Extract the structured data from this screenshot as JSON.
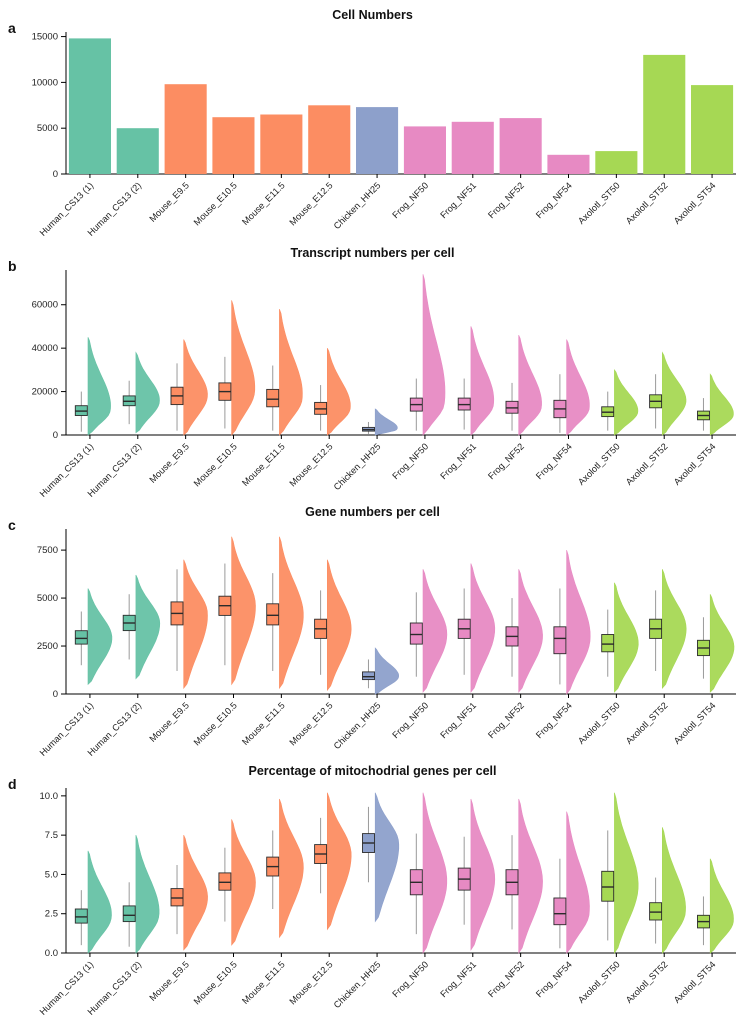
{
  "figure_background": "#ffffff",
  "categories": [
    "Human_CS13 (1)",
    "Human_CS13 (2)",
    "Mouse_E9.5",
    "Mouse_E10.5",
    "Mouse_E11.5",
    "Mouse_E12.5",
    "Chicken_HH25",
    "Frog_NF50",
    "Frog_NF51",
    "Frog_NF52",
    "Frog_NF54",
    "Axolotl_ST50",
    "Axolotl_ST52",
    "Axolotl_ST54"
  ],
  "group_colors": [
    "#66C2A5",
    "#66C2A5",
    "#FC8D62",
    "#FC8D62",
    "#FC8D62",
    "#FC8D62",
    "#8DA0CB",
    "#E78AC3",
    "#E78AC3",
    "#E78AC3",
    "#E78AC3",
    "#A6D854",
    "#A6D854",
    "#A6D854"
  ],
  "species_palette": {
    "Human": "#66C2A5",
    "Mouse": "#FC8D62",
    "Chicken": "#8DA0CB",
    "Frog": "#E78AC3",
    "Axolotl": "#A6D854"
  },
  "stats_order": "whisker_low, q1, median, q3, whisker_high, violin_bottom, violin_top",
  "chart_data": [
    {
      "type": "bar",
      "panel_label": "a",
      "title": "Cell Numbers",
      "categories": [
        "Human_CS13 (1)",
        "Human_CS13 (2)",
        "Mouse_E9.5",
        "Mouse_E10.5",
        "Mouse_E11.5",
        "Mouse_E12.5",
        "Chicken_HH25",
        "Frog_NF50",
        "Frog_NF51",
        "Frog_NF52",
        "Frog_NF54",
        "Axolotl_ST50",
        "Axolotl_ST52",
        "Axolotl_ST54"
      ],
      "values": [
        14800,
        5000,
        9800,
        6200,
        6500,
        7500,
        7300,
        5200,
        5700,
        6100,
        2100,
        2500,
        13000,
        9700
      ],
      "xlabel": "",
      "ylabel": "",
      "ylim": [
        0,
        15500
      ],
      "yticks": [
        0,
        5000,
        10000,
        15000
      ],
      "ytick_labels": [
        "0",
        "5000",
        "10000",
        "15000"
      ],
      "grid": false,
      "legend": "none"
    },
    {
      "type": "violin-box",
      "panel_label": "b",
      "title": "Transcript numbers per cell",
      "categories": [
        "Human_CS13 (1)",
        "Human_CS13 (2)",
        "Mouse_E9.5",
        "Mouse_E10.5",
        "Mouse_E11.5",
        "Mouse_E12.5",
        "Chicken_HH25",
        "Frog_NF50",
        "Frog_NF51",
        "Frog_NF52",
        "Frog_NF54",
        "Axolotl_ST50",
        "Axolotl_ST52",
        "Axolotl_ST54"
      ],
      "ylim": [
        0,
        76000
      ],
      "yticks": [
        0,
        20000,
        40000,
        60000
      ],
      "ytick_labels": [
        "0",
        "20000",
        "40000",
        "60000"
      ],
      "grid": false,
      "legend": "none",
      "stats": [
        [
          1500,
          9000,
          11000,
          13500,
          20000,
          0,
          45000
        ],
        [
          5000,
          13500,
          15500,
          18000,
          25000,
          1000,
          38000
        ],
        [
          2000,
          14000,
          18000,
          22000,
          33000,
          0,
          44000
        ],
        [
          3000,
          16000,
          20000,
          24000,
          36000,
          0,
          62000
        ],
        [
          2000,
          13000,
          16500,
          21000,
          32000,
          0,
          58000
        ],
        [
          2000,
          9500,
          12000,
          15000,
          23000,
          0,
          40000
        ],
        [
          500,
          1800,
          2500,
          3500,
          6000,
          0,
          12000
        ],
        [
          2000,
          11000,
          14000,
          17000,
          26000,
          0,
          74000
        ],
        [
          2500,
          11500,
          14000,
          17000,
          26000,
          0,
          50000
        ],
        [
          2000,
          10000,
          12500,
          15500,
          24000,
          0,
          46000
        ],
        [
          1000,
          8000,
          12000,
          16000,
          28000,
          0,
          44000
        ],
        [
          2000,
          8500,
          10500,
          13000,
          20000,
          0,
          30000
        ],
        [
          3000,
          12500,
          15500,
          18500,
          28000,
          0,
          38000
        ],
        [
          2000,
          7000,
          9000,
          11000,
          17000,
          0,
          28000
        ]
      ]
    },
    {
      "type": "violin-box",
      "panel_label": "c",
      "title": "Gene numbers per cell",
      "categories": [
        "Human_CS13 (1)",
        "Human_CS13 (2)",
        "Mouse_E9.5",
        "Mouse_E10.5",
        "Mouse_E11.5",
        "Mouse_E12.5",
        "Chicken_HH25",
        "Frog_NF50",
        "Frog_NF51",
        "Frog_NF52",
        "Frog_NF54",
        "Axolotl_ST50",
        "Axolotl_ST52",
        "Axolotl_ST54"
      ],
      "ylim": [
        0,
        8600
      ],
      "yticks": [
        0,
        2500,
        5000,
        7500
      ],
      "ytick_labels": [
        "0",
        "2500",
        "5000",
        "7500"
      ],
      "grid": false,
      "legend": "none",
      "stats": [
        [
          1500,
          2600,
          2900,
          3300,
          4300,
          500,
          5500
        ],
        [
          1800,
          3300,
          3700,
          4100,
          5200,
          800,
          6200
        ],
        [
          1200,
          3600,
          4200,
          4800,
          6500,
          300,
          7000
        ],
        [
          1500,
          4100,
          4600,
          5100,
          6800,
          500,
          8200
        ],
        [
          1200,
          3600,
          4100,
          4700,
          6300,
          300,
          8200
        ],
        [
          1000,
          2900,
          3400,
          3900,
          5400,
          200,
          7000
        ],
        [
          300,
          750,
          900,
          1150,
          1800,
          0,
          2400
        ],
        [
          900,
          2600,
          3100,
          3700,
          5300,
          100,
          6500
        ],
        [
          1000,
          2900,
          3400,
          3900,
          5500,
          100,
          6800
        ],
        [
          900,
          2500,
          3000,
          3500,
          5000,
          100,
          6500
        ],
        [
          500,
          2100,
          2900,
          3500,
          5500,
          0,
          7500
        ],
        [
          900,
          2200,
          2600,
          3100,
          4400,
          100,
          5800
        ],
        [
          1200,
          2900,
          3400,
          3900,
          5400,
          300,
          6500
        ],
        [
          800,
          2000,
          2400,
          2800,
          4000,
          100,
          5200
        ]
      ]
    },
    {
      "type": "violin-box",
      "panel_label": "d",
      "title": "Percentage of mitochodrial genes per cell",
      "categories": [
        "Human_CS13 (1)",
        "Human_CS13 (2)",
        "Mouse_E9.5",
        "Mouse_E10.5",
        "Mouse_E11.5",
        "Mouse_E12.5",
        "Chicken_HH25",
        "Frog_NF50",
        "Frog_NF51",
        "Frog_NF52",
        "Frog_NF54",
        "Axolotl_ST50",
        "Axolotl_ST52",
        "Axolotl_ST54"
      ],
      "ylim": [
        0,
        10.5
      ],
      "yticks": [
        0,
        2.5,
        5,
        7.5,
        10
      ],
      "ytick_labels": [
        "0.0",
        "2.5",
        "5.0",
        "7.5",
        "10.0"
      ],
      "grid": false,
      "legend": "none",
      "stats": [
        [
          0.5,
          1.9,
          2.3,
          2.8,
          4.0,
          0,
          6.5
        ],
        [
          0.4,
          2.0,
          2.4,
          3.0,
          4.5,
          0,
          7.5
        ],
        [
          1.2,
          3.0,
          3.5,
          4.1,
          5.6,
          0.2,
          7.5
        ],
        [
          2.0,
          4.0,
          4.5,
          5.1,
          6.7,
          0.5,
          8.5
        ],
        [
          2.8,
          4.9,
          5.5,
          6.1,
          7.8,
          1.0,
          9.8
        ],
        [
          3.8,
          5.7,
          6.3,
          6.9,
          8.6,
          1.5,
          10.2
        ],
        [
          4.5,
          6.4,
          7.0,
          7.6,
          9.3,
          2.0,
          10.2
        ],
        [
          1.2,
          3.7,
          4.5,
          5.3,
          7.6,
          0,
          10.2
        ],
        [
          1.8,
          4.0,
          4.7,
          5.4,
          7.4,
          0.2,
          9.8
        ],
        [
          1.5,
          3.7,
          4.5,
          5.3,
          7.5,
          0,
          9.8
        ],
        [
          0.3,
          1.8,
          2.5,
          3.5,
          6.0,
          0,
          9.0
        ],
        [
          0.8,
          3.3,
          4.2,
          5.2,
          7.8,
          0,
          10.2
        ],
        [
          0.6,
          2.1,
          2.6,
          3.2,
          4.8,
          0,
          8.0
        ],
        [
          0.5,
          1.6,
          2.0,
          2.4,
          3.6,
          0,
          6.0
        ]
      ]
    }
  ]
}
